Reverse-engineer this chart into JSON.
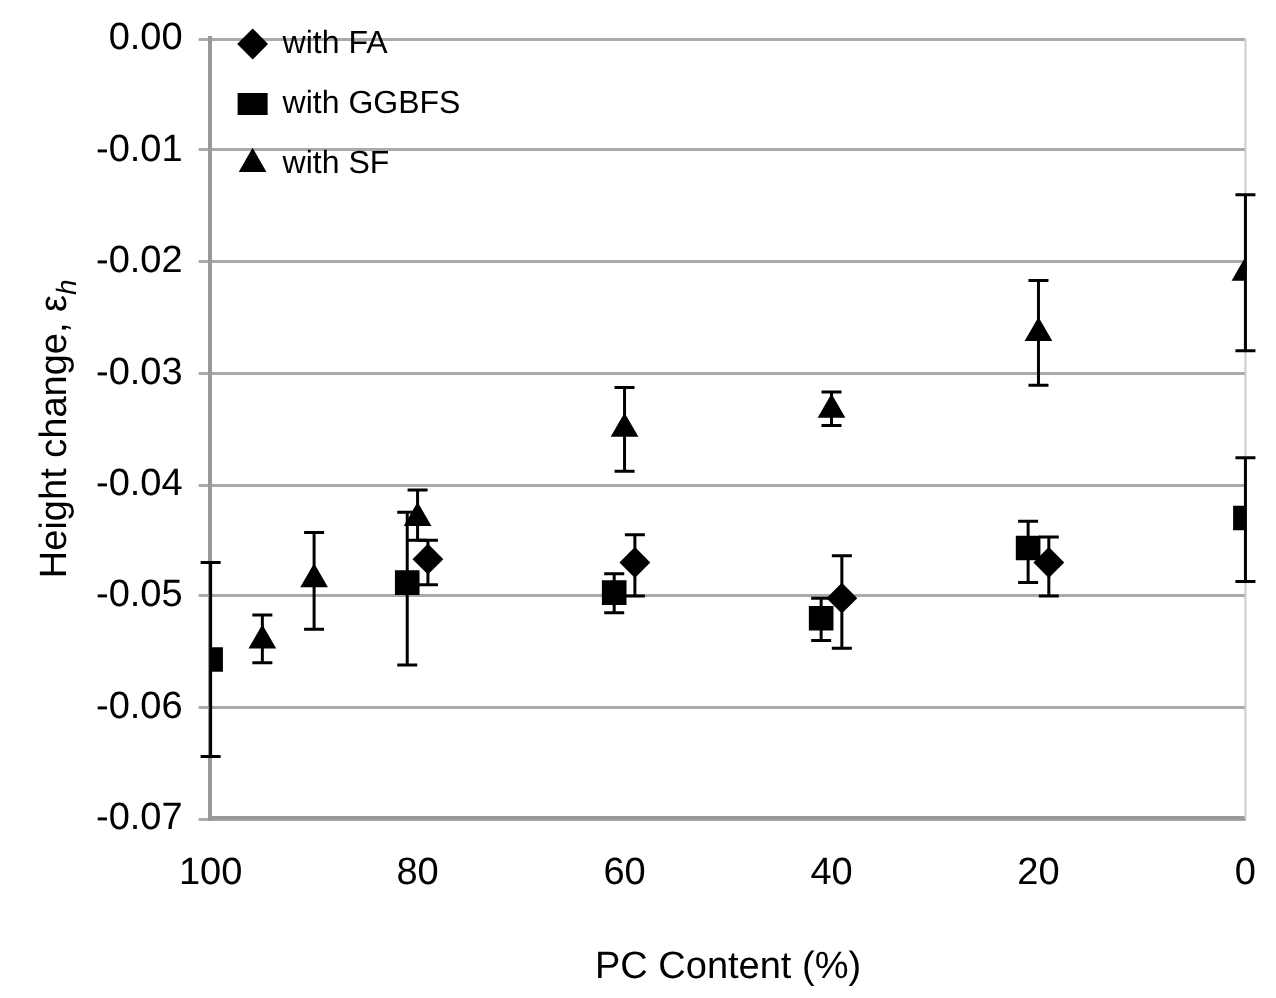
{
  "chart_data": {
    "type": "scatter",
    "xlabel": "PC Content (%)",
    "ylabel": "Height change, ε$_{h}$",
    "xlim": [
      100,
      0
    ],
    "xticks": [
      100,
      80,
      60,
      40,
      20,
      0
    ],
    "ylim": [
      -0.07,
      0
    ],
    "yticks": [
      {
        "value": 0,
        "label": "0.00"
      },
      -0.01,
      -0.02,
      -0.03,
      -0.04,
      -0.05,
      -0.06,
      -0.07
    ],
    "grid": "y",
    "legend": "top left",
    "series": [
      {
        "name": "with FA",
        "color": "#000000",
        "marker": "diamond",
        "x": [
          79,
          59,
          39,
          19
        ],
        "values": [
          -0.0467,
          -0.047,
          -0.0502,
          -0.047
        ],
        "errors": [
          [
            -0.049,
            -0.045
          ],
          [
            -0.05,
            -0.0445
          ],
          [
            -0.0547,
            -0.0464
          ],
          [
            -0.05,
            -0.0447
          ]
        ]
      },
      {
        "name": "with GGBFS",
        "color": "#000000",
        "marker": "square",
        "x": [
          100,
          81,
          61,
          41,
          21,
          0
        ],
        "values": [
          -0.0557,
          -0.0488,
          -0.0497,
          -0.052,
          -0.0457,
          -0.043
        ],
        "errors": [
          [
            -0.0644,
            -0.047
          ],
          [
            -0.0562,
            -0.0425
          ],
          [
            -0.0515,
            -0.048
          ],
          [
            -0.054,
            -0.0502
          ],
          [
            -0.0488,
            -0.0433
          ],
          [
            -0.0487,
            -0.0376
          ]
        ]
      },
      {
        "name": "with SF",
        "color": "#000000",
        "marker": "triangle",
        "x": [
          95,
          90,
          80,
          60,
          40,
          20,
          0
        ],
        "values": [
          -0.054,
          -0.0485,
          -0.043,
          -0.035,
          -0.0333,
          -0.0264,
          -0.021
        ],
        "errors": [
          [
            -0.056,
            -0.0517
          ],
          [
            -0.053,
            -0.0443
          ],
          [
            -0.045,
            -0.0405
          ],
          [
            -0.0388,
            -0.0313
          ],
          [
            -0.0347,
            -0.0317
          ],
          [
            -0.0311,
            -0.0217
          ],
          [
            -0.028,
            -0.014
          ]
        ]
      }
    ]
  }
}
